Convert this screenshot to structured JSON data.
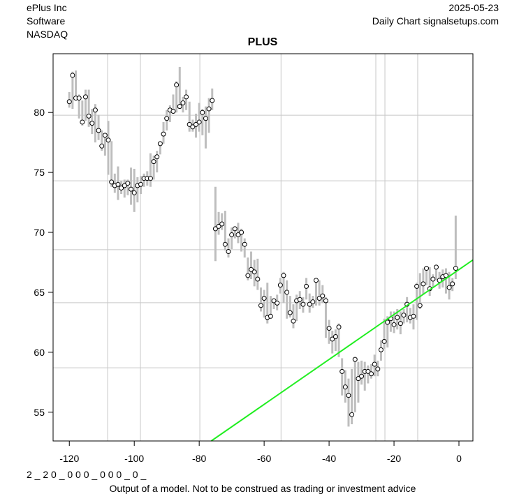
{
  "chart_data": {
    "type": "hlc",
    "title": "PLUS",
    "company": "ePlus Inc",
    "sector": "Software",
    "exchange": "NASDAQ",
    "date": "2025-05-23",
    "source": "Daily Chart signalsetups.com",
    "code": "2 _ 2 0 _ 0 0 0 _ 0 0 0 _ 0 _",
    "footer": "Output of a model. Not to be construed as trading or investment advice",
    "xlim": [
      -125,
      4.3
    ],
    "ylim": [
      52.6,
      84.9
    ],
    "xticks": [
      -120,
      -100,
      -80,
      -60,
      -40,
      -20,
      0
    ],
    "yticks": [
      55,
      60,
      65,
      70,
      75,
      80
    ],
    "grid_x": [
      -108.2,
      -98.1,
      -79.8,
      -54.8,
      -25.6,
      -22.8,
      -12.7
    ],
    "grid_y": [
      79.77,
      74.3,
      68.55,
      64.13,
      58.7
    ],
    "bar_color": "#bebebe",
    "trend_color": "#22ee22",
    "trend": {
      "x": [
        -76.3,
        4.3
      ],
      "y": [
        52.6,
        67.7
      ]
    },
    "x": [
      -120,
      -119,
      -118,
      -117,
      -116,
      -115,
      -114,
      -113,
      -112,
      -111,
      -110,
      -109,
      -108,
      -107,
      -106,
      -105,
      -104,
      -103,
      -102,
      -101,
      -100,
      -99,
      -98,
      -97,
      -96,
      -95,
      -94,
      -93,
      -92,
      -91,
      -90,
      -89,
      -88,
      -87,
      -86,
      -85,
      -84,
      -83,
      -82,
      -81,
      -80,
      -79,
      -78,
      -77,
      -76,
      -75,
      -74,
      -73,
      -72,
      -71,
      -70,
      -69,
      -68,
      -67,
      -66,
      -65,
      -64,
      -63,
      -62,
      -61,
      -60,
      -59,
      -58,
      -57,
      -56,
      -55,
      -54,
      -53,
      -52,
      -51,
      -50,
      -49,
      -48,
      -47,
      -46,
      -45,
      -44,
      -43,
      -42,
      -41,
      -40,
      -39,
      -38,
      -37,
      -36,
      -35,
      -34,
      -33,
      -32,
      -31,
      -30,
      -29,
      -28,
      -27,
      -26,
      -25,
      -24,
      -23,
      -22,
      -21,
      -20,
      -19,
      -18,
      -17,
      -16,
      -15,
      -14,
      -13,
      -12,
      -11,
      -10,
      -9,
      -8,
      -7,
      -6,
      -5,
      -4,
      -3,
      -2,
      -1
    ],
    "close": [
      80.9,
      83.1,
      81.2,
      81.2,
      79.2,
      81.3,
      79.7,
      79.1,
      80.2,
      78.5,
      77.2,
      78.1,
      77.7,
      74.2,
      73.9,
      74.0,
      73.7,
      73.9,
      74.1,
      73.6,
      73.3,
      73.9,
      74.0,
      74.5,
      74.5,
      74.5,
      75.9,
      76.3,
      77.4,
      78.2,
      79.5,
      80.2,
      80.1,
      82.3,
      80.5,
      80.8,
      81.3,
      79.0,
      78.8,
      79.0,
      79.2,
      80.0,
      79.5,
      80.3,
      81.0,
      70.3,
      70.5,
      70.7,
      69.0,
      68.4,
      69.8,
      70.3,
      69.8,
      70.0,
      69.0,
      66.4,
      66.9,
      66.7,
      66.1,
      63.9,
      64.5,
      62.9,
      63.0,
      64.3,
      64.1,
      65.6,
      66.4,
      65.0,
      63.3,
      62.6,
      64.3,
      64.4,
      64.0,
      65.5,
      64.0,
      64.2,
      66.0,
      64.5,
      64.7,
      64.3,
      62.0,
      61.1,
      61.3,
      62.1,
      58.4,
      57.1,
      56.4,
      54.8,
      59.4,
      57.8,
      58.0,
      58.4,
      58.4,
      58.2,
      59.0,
      58.6,
      60.2,
      60.9,
      62.5,
      62.8,
      62.3,
      62.9,
      62.4,
      63.1,
      64.0,
      62.9,
      63.0,
      65.5,
      63.9,
      65.7,
      67.0,
      65.3,
      66.1,
      67.1,
      66.0,
      66.3,
      66.4,
      65.4,
      65.7,
      67.0
    ],
    "high": [
      81.7,
      83.4,
      83.5,
      81.5,
      81.0,
      81.9,
      81.9,
      80.3,
      80.7,
      79.8,
      78.5,
      78.3,
      79.3,
      77.6,
      74.9,
      75.5,
      74.3,
      74.4,
      74.4,
      75.4,
      75.3,
      74.6,
      74.7,
      74.9,
      75.1,
      76.6,
      76.4,
      76.8,
      77.5,
      79.2,
      80.2,
      80.6,
      81.5,
      82.6,
      83.8,
      81.3,
      81.9,
      80.9,
      79.4,
      79.9,
      80.8,
      80.3,
      80.5,
      81.2,
      82.0,
      73.8,
      71.7,
      71.6,
      71.8,
      69.5,
      70.4,
      70.5,
      70.8,
      70.3,
      69.5,
      67.9,
      68.4,
      67.7,
      67.8,
      65.4,
      65.2,
      65.8,
      64.7,
      64.4,
      64.8,
      66.2,
      66.7,
      66.0,
      64.7,
      64.0,
      64.8,
      65.1,
      64.6,
      66.2,
      64.9,
      64.7,
      66.2,
      66.0,
      65.6,
      64.6,
      62.7,
      61.8,
      61.9,
      62.4,
      59.5,
      58.5,
      57.8,
      58.6,
      59.6,
      59.2,
      59.3,
      59.2,
      58.9,
      59.0,
      59.8,
      59.3,
      61.0,
      62.8,
      63.0,
      63.4,
      63.4,
      63.6,
      63.4,
      63.6,
      64.6,
      63.7,
      64.0,
      65.8,
      66.6,
      67.0,
      67.2,
      67.1,
      66.5,
      67.3,
      66.7,
      66.9,
      67.0,
      66.7,
      66.2,
      71.4
    ],
    "low": [
      80.4,
      80.3,
      81.0,
      79.5,
      78.9,
      79.3,
      78.8,
      78.2,
      77.5,
      77.7,
      76.8,
      76.4,
      74.8,
      73.8,
      73.3,
      72.7,
      73.2,
      72.9,
      73.1,
      72.3,
      71.7,
      72.5,
      73.2,
      73.8,
      73.9,
      73.8,
      74.4,
      75.0,
      76.5,
      77.4,
      78.5,
      79.2,
      79.9,
      80.0,
      80.6,
      80.0,
      80.2,
      78.4,
      78.4,
      77.9,
      78.4,
      78.1,
      77.0,
      78.3,
      80.2,
      67.6,
      69.8,
      70.2,
      68.5,
      67.9,
      68.6,
      69.5,
      69.1,
      68.4,
      67.9,
      66.0,
      66.1,
      65.5,
      65.2,
      63.4,
      62.9,
      62.4,
      62.8,
      63.6,
      63.5,
      64.9,
      64.1,
      62.8,
      62.9,
      62.0,
      62.6,
      63.6,
      63.3,
      64.4,
      63.3,
      63.7,
      63.9,
      63.9,
      64.1,
      61.2,
      60.7,
      59.9,
      60.1,
      59.6,
      56.4,
      55.8,
      53.8,
      54.0,
      55.0,
      55.8,
      57.3,
      56.8,
      57.4,
      57.8,
      58.0,
      58.0,
      59.3,
      60.3,
      60.4,
      61.7,
      61.6,
      61.9,
      61.5,
      62.4,
      62.5,
      62.4,
      61.9,
      62.7,
      63.6,
      64.8,
      65.6,
      64.7,
      65.4,
      66.0,
      65.3,
      65.4,
      64.9,
      64.4,
      65.1,
      66.1
    ]
  }
}
